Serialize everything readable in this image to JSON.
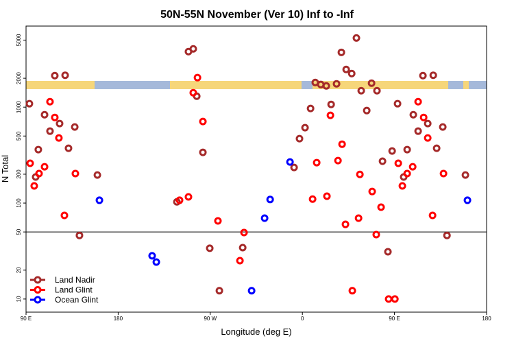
{
  "chart_data": {
    "type": "scatter",
    "title": "50N-55N November (Ver 10)   Inf to -Inf",
    "x_label": "Longitude (deg E)",
    "y_label": "N Total",
    "xlim": [
      90,
      540
    ],
    "xticks": [
      {
        "value": 90,
        "label": "90 E"
      },
      {
        "value": 180,
        "label": "180"
      },
      {
        "value": 270,
        "label": "90 W"
      },
      {
        "value": 360,
        "label": "0"
      },
      {
        "value": 450,
        "label": "90 E"
      },
      {
        "value": 540,
        "label": "180"
      }
    ],
    "ylim": [
      7.3,
      7000
    ],
    "yticks": [
      10,
      20,
      50,
      100,
      200,
      500,
      1000,
      2000,
      5000
    ],
    "log_y": true,
    "hline": 50,
    "legend": "bottom-left",
    "series": [
      {
        "name": "Land Nadir",
        "color": "#a52a2a",
        "x": [
          93.3,
          118.1,
          128.2,
          102,
          99.4,
          108.1,
          113.4,
          122.8,
          131.5,
          137.6,
          142.2,
          159.7,
          248.7,
          253.4,
          256.8,
          262.8,
          237.4,
          269.5,
          278.9,
          301.7,
          351.9,
          357.2,
          362.6,
          368,
          372.6,
          378,
          383.4,
          388.1,
          393.4,
          398.1,
          402.8,
          408.2,
          412.8,
          417.5,
          422.9,
          427.6,
          432.9,
          438.3,
          443.6,
          447.7,
          453,
          459,
          462.4,
          468.4,
          473.1,
          477.8,
          482.5,
          487.9,
          491.2,
          497.2,
          501.3,
          519.3
        ],
        "values": [
          1086,
          2130,
          2150,
          361,
          187,
          834,
          562,
          674,
          373,
          621,
          46,
          196,
          3790,
          4050,
          1300,
          338,
          103,
          33.8,
          12.2,
          34.3,
          235,
          469,
          611,
          968,
          1808,
          1722,
          1665,
          1068,
          1750,
          3725,
          2470,
          2240,
          5260,
          1484,
          921,
          1778,
          1484,
          273,
          31.1,
          349,
          1086,
          187,
          361,
          834,
          562,
          2130,
          674,
          2150,
          373,
          621,
          46,
          196
        ]
      },
      {
        "name": "Land Glint",
        "color": "#ff0000",
        "x": [
          94,
          98,
          102.7,
          108.1,
          113.4,
          118.1,
          122.1,
          127.5,
          138.2,
          240,
          248.7,
          253.4,
          257.5,
          262.8,
          277.5,
          299,
          303,
          370,
          374,
          384,
          387.4,
          394.8,
          398.8,
          402.1,
          408.8,
          414.9,
          416.2,
          428.2,
          432.2,
          436.9,
          444.3,
          450.4,
          453.7,
          457.7,
          462.4,
          467.8,
          473.1,
          478.5,
          482.5,
          487.2,
          497.9
        ],
        "values": [
          260,
          151,
          203,
          239,
          1140,
          781,
          477,
          74.4,
          203,
          107,
          116,
          1413,
          2030,
          708,
          65.2,
          25.1,
          49.3,
          110,
          264,
          118,
          821,
          277,
          411,
          60,
          12.2,
          69.6,
          199,
          132,
          46.9,
          90.6,
          10,
          10,
          260,
          151,
          203,
          239,
          1140,
          781,
          477,
          74.4,
          203
        ]
      },
      {
        "name": "Ocean Glint",
        "color": "#0000ff",
        "x": [
          161.7,
          213.2,
          217.3,
          310.4,
          323.1,
          328.5,
          347.9,
          521.3
        ],
        "values": [
          107,
          28.2,
          24.3,
          12.2,
          69.6,
          109,
          268,
          107
        ]
      }
    ]
  }
}
